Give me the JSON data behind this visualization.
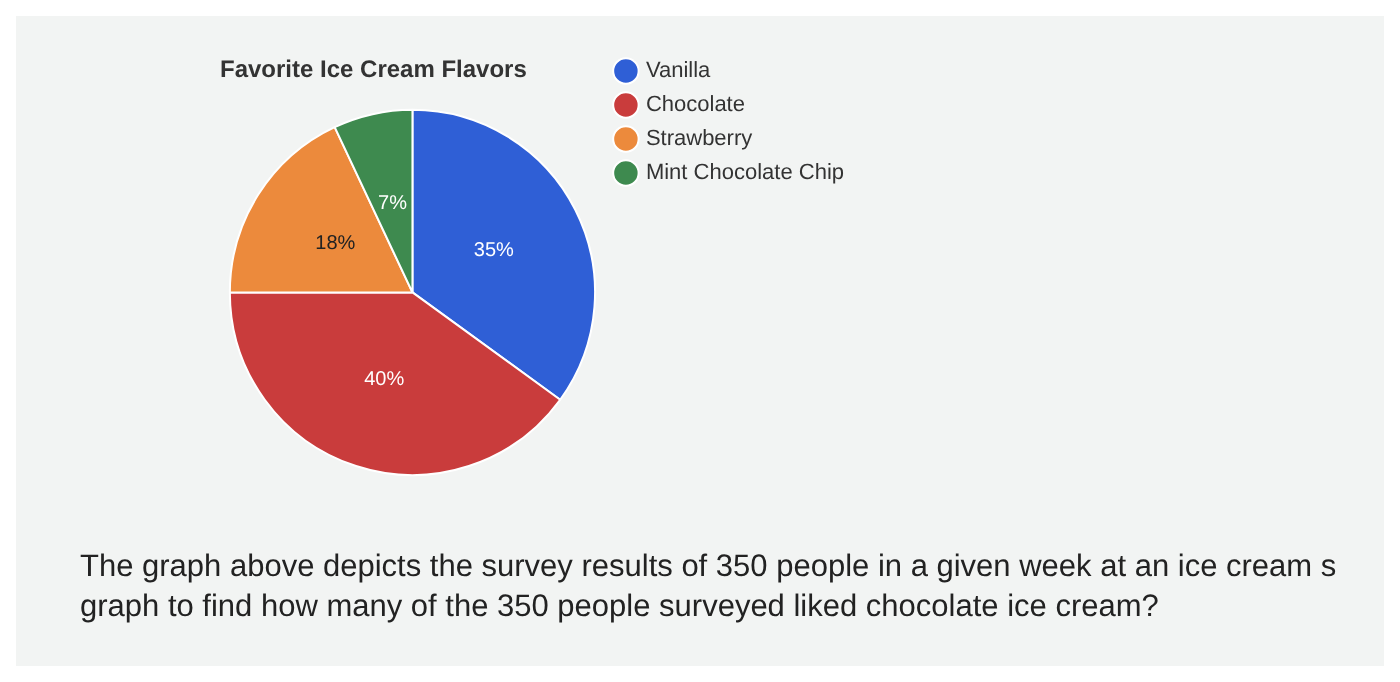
{
  "chart_data": {
    "type": "pie",
    "title": "Favorite Ice Cream Flavors",
    "categories": [
      "Vanilla",
      "Chocolate",
      "Strawberry",
      "Mint Chocolate Chip"
    ],
    "values": [
      35,
      40,
      18,
      7
    ],
    "colors": [
      "#2f5fd6",
      "#c93c3c",
      "#ec8a3c",
      "#3e8a4f"
    ],
    "value_labels": [
      "35%",
      "40%",
      "18%",
      "7%"
    ],
    "legend": "right",
    "annotations": [
      "The graph above depicts the survey results of 350 people in a given week at an ice cream s",
      "graph to find how many of the 350 people surveyed liked chocolate ice cream?"
    ]
  }
}
